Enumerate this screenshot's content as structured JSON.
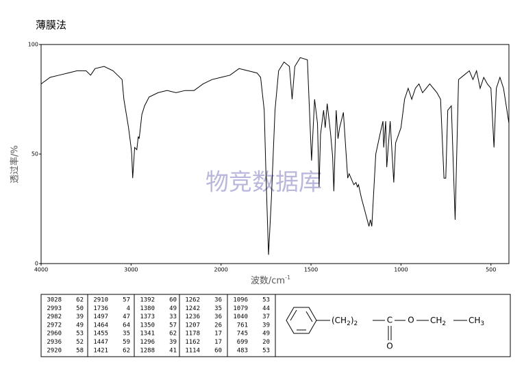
{
  "title": "薄膜法",
  "chart_data": {
    "type": "line",
    "y_label": "透过率/%",
    "x_label": "波数/cm",
    "x_label_sup": "-1",
    "watermark": "物竞数据库",
    "color": "#000000",
    "xlim": [
      4000,
      400
    ],
    "xticks": [
      4000,
      3000,
      2000,
      1500,
      1000,
      500
    ],
    "x_scale_change": {
      "at": 2000,
      "factor": 2
    },
    "ylim": [
      0,
      100
    ],
    "yticks": [
      0,
      50,
      100
    ],
    "grid": false,
    "x": [
      4000,
      3900,
      3800,
      3700,
      3600,
      3500,
      3450,
      3400,
      3300,
      3200,
      3150,
      3100,
      3080,
      3060,
      3028,
      3000,
      2993,
      2982,
      2960,
      2936,
      2920,
      2910,
      2880,
      2850,
      2800,
      2700,
      2600,
      2500,
      2400,
      2300,
      2200,
      2100,
      2000,
      1950,
      1900,
      1850,
      1800,
      1780,
      1760,
      1750,
      1736,
      1720,
      1700,
      1680,
      1650,
      1620,
      1605,
      1590,
      1560,
      1520,
      1497,
      1480,
      1464,
      1455,
      1447,
      1430,
      1421,
      1410,
      1392,
      1380,
      1373,
      1360,
      1350,
      1341,
      1320,
      1296,
      1288,
      1262,
      1250,
      1242,
      1236,
      1220,
      1207,
      1178,
      1170,
      1162,
      1140,
      1114,
      1100,
      1096,
      1085,
      1079,
      1060,
      1040,
      1030,
      1000,
      980,
      960,
      940,
      920,
      900,
      880,
      860,
      840,
      820,
      800,
      780,
      761,
      751,
      740,
      720,
      699,
      680,
      650,
      620,
      600,
      580,
      560,
      540,
      520,
      500,
      483,
      470,
      450,
      430,
      400
    ],
    "values": [
      82,
      85,
      86,
      87,
      88,
      88,
      86,
      89,
      90,
      88,
      86,
      84,
      75,
      70,
      62,
      53,
      50,
      39,
      53,
      52,
      58,
      57,
      68,
      72,
      76,
      78,
      79,
      78,
      79,
      79,
      82,
      84,
      85,
      86,
      89,
      88,
      87,
      85,
      70,
      40,
      4,
      30,
      70,
      88,
      92,
      90,
      75,
      90,
      94,
      93,
      47,
      75,
      64,
      35,
      59,
      70,
      62,
      73,
      60,
      49,
      33,
      70,
      57,
      62,
      69,
      39,
      41,
      36,
      37,
      35,
      36,
      30,
      26,
      17,
      20,
      17,
      50,
      60,
      65,
      53,
      65,
      44,
      65,
      37,
      55,
      62,
      75,
      80,
      75,
      80,
      82,
      78,
      80,
      82,
      80,
      78,
      75,
      39,
      39,
      70,
      72,
      20,
      84,
      86,
      88,
      84,
      88,
      80,
      85,
      82,
      80,
      53,
      80,
      85,
      80,
      64
    ]
  },
  "peak_table": [
    [
      [
        3028,
        62
      ],
      [
        2993,
        50
      ],
      [
        2982,
        39
      ],
      [
        2972,
        49
      ],
      [
        2960,
        53
      ],
      [
        2936,
        52
      ],
      [
        2920,
        58
      ]
    ],
    [
      [
        2910,
        57
      ],
      [
        1736,
        4
      ],
      [
        1497,
        47
      ],
      [
        1464,
        64
      ],
      [
        1455,
        35
      ],
      [
        1447,
        59
      ],
      [
        1421,
        62
      ]
    ],
    [
      [
        1392,
        60
      ],
      [
        1380,
        49
      ],
      [
        1373,
        33
      ],
      [
        1350,
        57
      ],
      [
        1341,
        62
      ],
      [
        1296,
        39
      ],
      [
        1288,
        41
      ]
    ],
    [
      [
        1262,
        36
      ],
      [
        1242,
        35
      ],
      [
        1236,
        36
      ],
      [
        1207,
        26
      ],
      [
        1178,
        17
      ],
      [
        1162,
        17
      ],
      [
        1114,
        60
      ]
    ],
    [
      [
        1096,
        53
      ],
      [
        1079,
        44
      ],
      [
        1040,
        37
      ],
      [
        761,
        39
      ],
      [
        745,
        49
      ],
      [
        699,
        20
      ],
      [
        483,
        53
      ]
    ]
  ],
  "structure": {
    "atoms": [
      {
        "text": "(CH",
        "sub": "2"
      },
      {
        "text": ")",
        "sub": "2"
      },
      {
        "text": "C"
      },
      {
        "text": "O"
      },
      {
        "text": "CH",
        "sub": "2"
      },
      {
        "text": "CH",
        "sub": "3"
      },
      {
        "text": "O"
      }
    ]
  }
}
